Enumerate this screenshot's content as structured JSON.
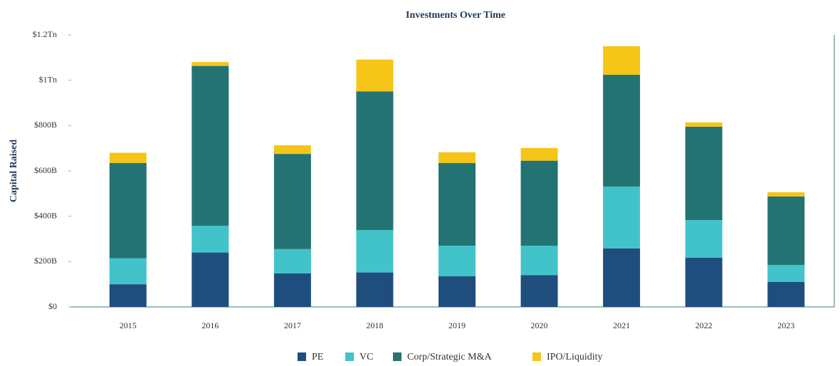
{
  "chart_data": {
    "type": "stacked_bar",
    "title": "Investments Over Time",
    "y_label": "Capital Raised",
    "categories": [
      "2015",
      "2016",
      "2017",
      "2018",
      "2019",
      "2020",
      "2021",
      "2022",
      "2023"
    ],
    "series": [
      {
        "name": "PE",
        "color": "#1f4e7e",
        "values": [
          100,
          240,
          148,
          152,
          135,
          140,
          258,
          217,
          110
        ]
      },
      {
        "name": "VC",
        "color": "#41c3c9",
        "values": [
          115,
          118,
          107,
          187,
          135,
          130,
          273,
          166,
          75
        ]
      },
      {
        "name": "Corp/Strategic M&A",
        "color": "#247373",
        "values": [
          420,
          705,
          420,
          612,
          365,
          375,
          493,
          412,
          302
        ]
      },
      {
        "name": "IPO/Liquidity",
        "color": "#f5c518",
        "values": [
          45,
          17,
          38,
          140,
          47,
          56,
          126,
          19,
          19
        ]
      }
    ],
    "ylim": [
      0,
      1200
    ],
    "yticks": [
      {
        "value": 0,
        "label": "$0"
      },
      {
        "value": 200,
        "label": "$200B"
      },
      {
        "value": 400,
        "label": "$400B"
      },
      {
        "value": 600,
        "label": "$600B"
      },
      {
        "value": 800,
        "label": "$800B"
      },
      {
        "value": 1000,
        "label": "$1Tn"
      },
      {
        "value": 1200,
        "label": "$1.2Tn"
      }
    ],
    "grid": false,
    "legend": "bottom"
  }
}
